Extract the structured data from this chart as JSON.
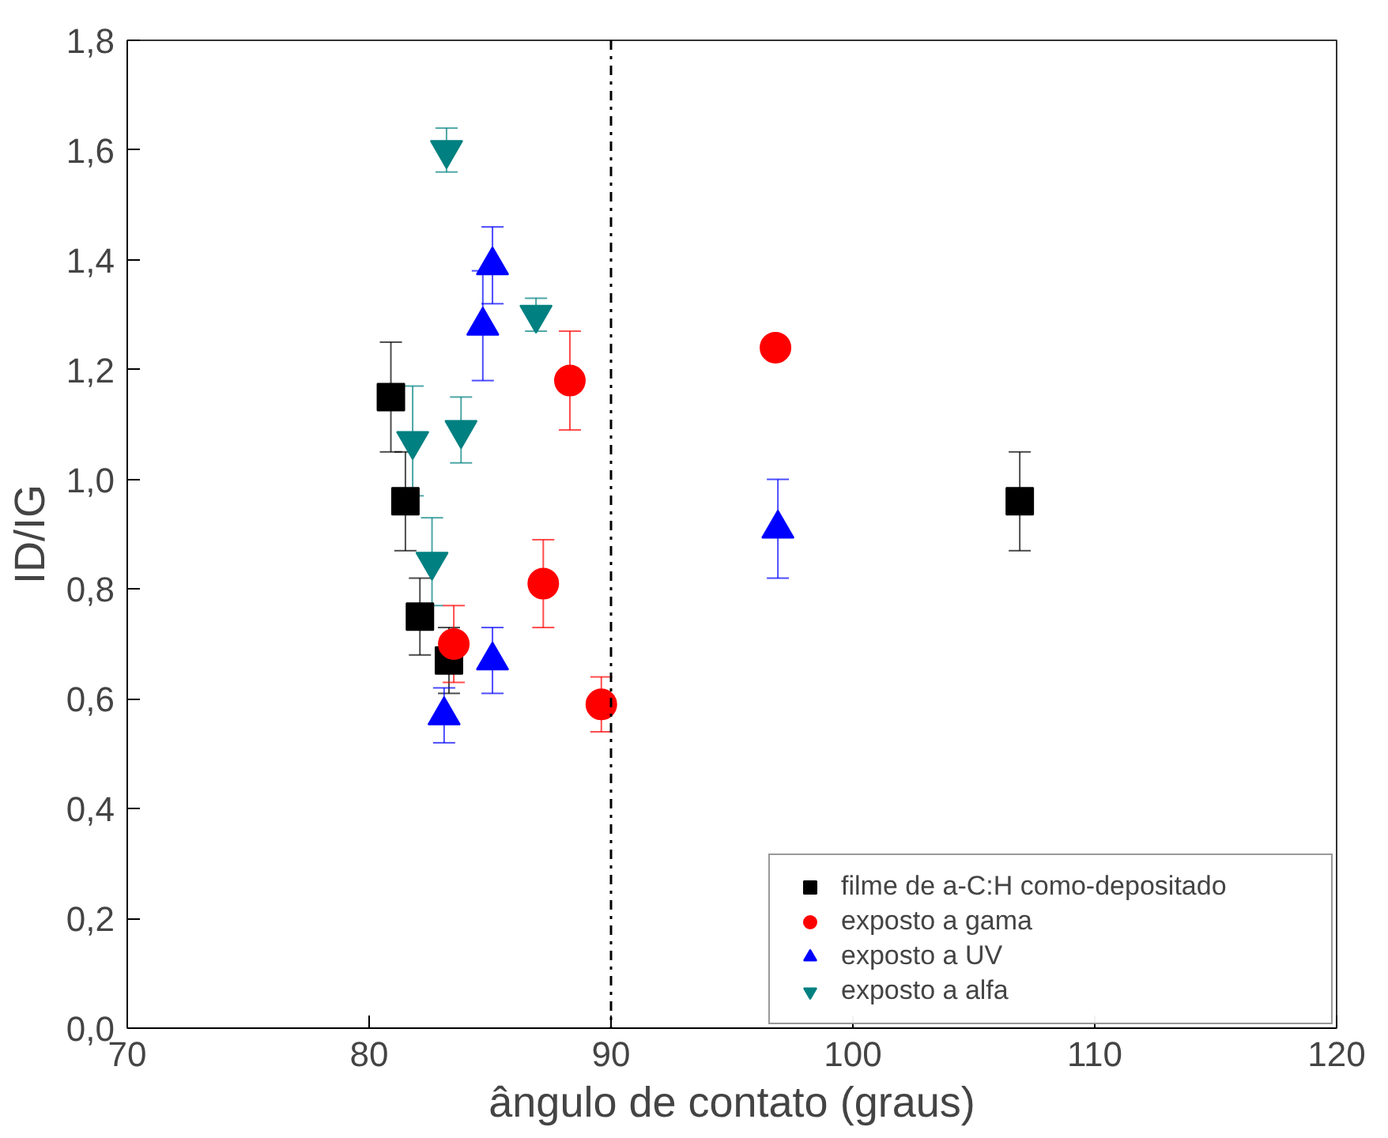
{
  "chart_data": {
    "type": "scatter",
    "xlabel": "ângulo de contato (graus)",
    "ylabel": "ID/IG",
    "xlim": [
      70,
      120
    ],
    "xticks": [
      70,
      80,
      90,
      100,
      110,
      120
    ],
    "ylim": [
      0,
      1.8
    ],
    "yticks": [
      {
        "value": 0,
        "label": "0,0"
      },
      {
        "value": 0.2,
        "label": "0,2"
      },
      {
        "value": 0.4,
        "label": "0,4"
      },
      {
        "value": 0.6,
        "label": "0,6"
      },
      {
        "value": 0.8,
        "label": "0,8"
      },
      {
        "value": 1.0,
        "label": "1,0"
      },
      {
        "value": 1.2,
        "label": "1,2"
      },
      {
        "value": 1.4,
        "label": "1,4"
      },
      {
        "value": 1.6,
        "label": "1,6"
      },
      {
        "value": 1.8,
        "label": "1,8"
      }
    ],
    "grid": false,
    "legend": "bottom right",
    "ref_lines": [
      {
        "axis": "x",
        "value": 90,
        "line_style": "dashdot",
        "color": "#000000"
      }
    ],
    "series": [
      {
        "name": "filme de a-C:H como-depositado",
        "color": "#000000",
        "marker": "square",
        "x": [
          80.9,
          81.5,
          82.1,
          83.3,
          106.9
        ],
        "values": [
          1.15,
          0.96,
          0.75,
          0.67,
          0.96
        ],
        "errors": [
          0.1,
          0.09,
          0.07,
          0.06,
          0.09
        ]
      },
      {
        "name": "exposto a gama",
        "color": "#ff0000",
        "marker": "circle",
        "x": [
          83.5,
          87.2,
          88.3,
          89.6,
          96.8
        ],
        "values": [
          0.7,
          0.81,
          1.18,
          0.59,
          1.24
        ],
        "errors": [
          0.07,
          0.08,
          0.09,
          0.05,
          null
        ]
      },
      {
        "name": "exposto a UV",
        "color": "#0000ff",
        "marker": "triangle",
        "x": [
          83.1,
          85.1,
          84.7,
          85.1,
          96.9
        ],
        "values": [
          0.57,
          0.67,
          1.28,
          1.39,
          0.91
        ],
        "errors": [
          0.05,
          0.06,
          0.1,
          0.07,
          0.09
        ]
      },
      {
        "name": "exposto a alfa",
        "color": "#008080",
        "marker": "triangle_down",
        "x": [
          83.2,
          81.8,
          83.8,
          82.6,
          86.9
        ],
        "values": [
          1.6,
          1.07,
          1.09,
          0.85,
          1.3
        ],
        "errors": [
          0.04,
          0.1,
          0.06,
          0.08,
          0.03
        ]
      }
    ]
  }
}
